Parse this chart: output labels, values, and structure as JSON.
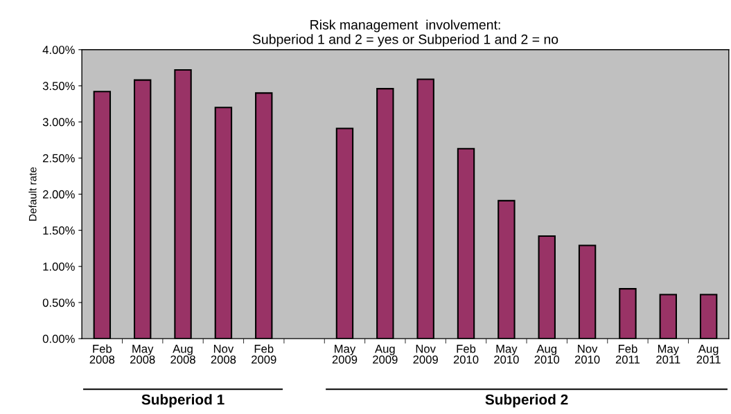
{
  "chart_data": {
    "type": "bar",
    "title": "Risk management  involvement:\nSubperiod 1 and 2 = yes or Subperiod 1 and 2 = no",
    "ylabel": "Default rate",
    "categories": [
      "Feb\n2008",
      "May\n2008",
      "Aug\n2008",
      "Nov\n2008",
      "Feb\n2009",
      null,
      "May\n2009",
      "Aug\n2009",
      "Nov\n2009",
      "Feb\n2010",
      "May\n2010",
      "Aug\n2010",
      "Nov\n2010",
      "Feb\n2011",
      "May\n2011",
      "Aug\n2011"
    ],
    "values": [
      3.42,
      3.58,
      3.72,
      3.2,
      3.4,
      null,
      2.91,
      3.46,
      3.59,
      2.63,
      1.91,
      1.42,
      1.29,
      0.69,
      0.61,
      0.61
    ],
    "color": "#993366",
    "ylim": [
      0,
      4
    ],
    "yticks": [
      {
        "value": 0,
        "label": "0.00%"
      },
      {
        "value": 0.5,
        "label": "0.50%"
      },
      {
        "value": 1,
        "label": "1.00%"
      },
      {
        "value": 1.5,
        "label": "1.50%"
      },
      {
        "value": 2,
        "label": "2.00%"
      },
      {
        "value": 2.5,
        "label": "2.50%"
      },
      {
        "value": 3,
        "label": "3.00%"
      },
      {
        "value": 3.5,
        "label": "3.50%"
      },
      {
        "value": 4,
        "label": "4.00%"
      }
    ],
    "grid": false,
    "legend": false,
    "annotations": [
      "Subperiod 1",
      "Subperiod 2"
    ]
  }
}
